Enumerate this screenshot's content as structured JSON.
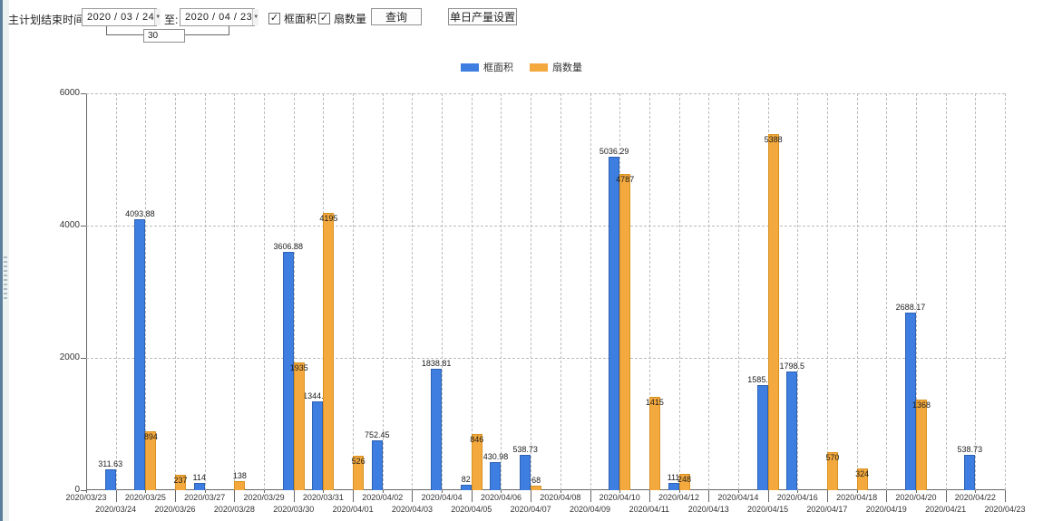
{
  "toolbar": {
    "plan_end_label": "主计划结束时间:",
    "date_from": "2020 / 03 / 24",
    "to_label": "至:",
    "date_to": "2020 / 04 / 23",
    "interval_days": "30",
    "checkbox_frame_area_label": "框面积",
    "checkbox_sash_count_label": "扇数量",
    "query_button_label": "查询",
    "daily_output_button_label": "单日产量设置"
  },
  "icons": {
    "dropdown_glyph": "▼",
    "check_glyph": "✓"
  },
  "colors": {
    "series_blue": "#3d7ee0",
    "series_orange": "#f4a93e"
  },
  "chart_data": {
    "type": "bar",
    "title": "",
    "xlabel": "",
    "ylabel": "",
    "ylim": [
      0,
      6000
    ],
    "yticks": [
      0,
      2000,
      4000,
      6000
    ],
    "grid": "dashed",
    "legend_position": "top-center",
    "categories": [
      "2020/03/23",
      "2020/03/24",
      "2020/03/25",
      "2020/03/26",
      "2020/03/27",
      "2020/03/28",
      "2020/03/29",
      "2020/03/30",
      "2020/03/31",
      "2020/04/01",
      "2020/04/02",
      "2020/04/03",
      "2020/04/04",
      "2020/04/05",
      "2020/04/06",
      "2020/04/07",
      "2020/04/08",
      "2020/04/09",
      "2020/04/10",
      "2020/04/11",
      "2020/04/12",
      "2020/04/13",
      "2020/04/14",
      "2020/04/15",
      "2020/04/16",
      "2020/04/17",
      "2020/04/18",
      "2020/04/19",
      "2020/04/20",
      "2020/04/21",
      "2020/04/22",
      "2020/04/23"
    ],
    "series": [
      {
        "name": "框面积",
        "color": "#3d7ee0",
        "values": [
          null,
          311.63,
          4093.88,
          null,
          114,
          null,
          null,
          3606.88,
          1344.95,
          null,
          752.45,
          null,
          1838.81,
          82,
          430.98,
          538.73,
          null,
          null,
          5036.29,
          null,
          111,
          null,
          null,
          1585.96,
          1798.5,
          null,
          null,
          null,
          2688.17,
          null,
          538.73,
          null
        ]
      },
      {
        "name": "扇数量",
        "color": "#f4a93e",
        "values": [
          null,
          null,
          894,
          237,
          null,
          138,
          null,
          1935,
          4195,
          526,
          null,
          null,
          null,
          846,
          null,
          68,
          null,
          null,
          4787,
          1415,
          248,
          null,
          null,
          5388,
          null,
          570,
          324,
          null,
          1368,
          null,
          null,
          null
        ]
      }
    ]
  }
}
